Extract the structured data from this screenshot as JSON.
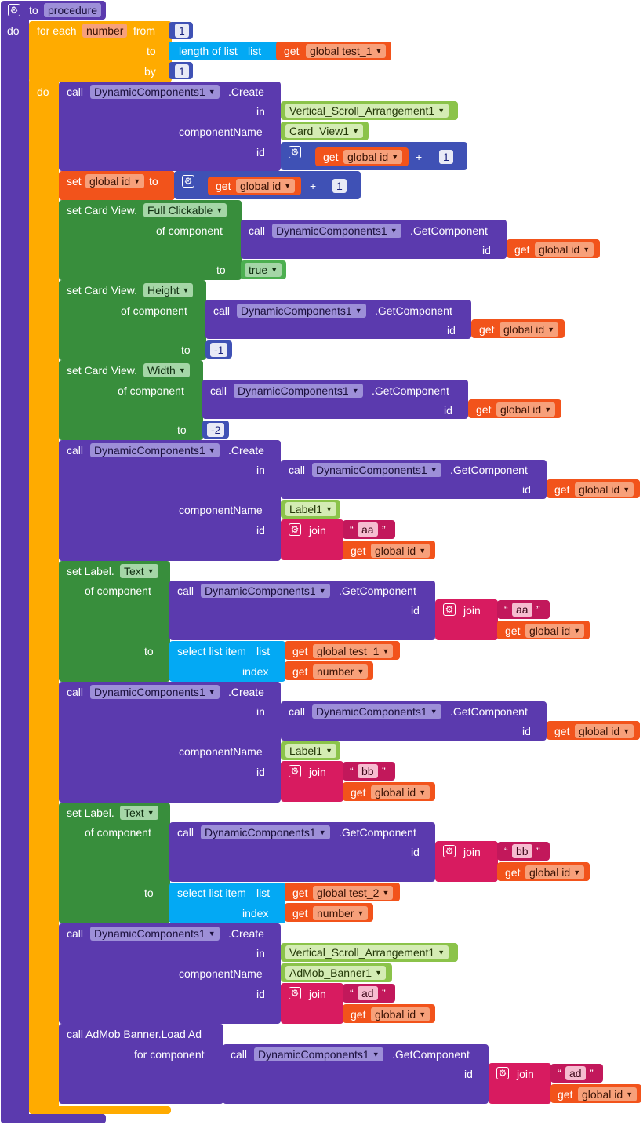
{
  "procedure": {
    "to_label": "to",
    "name": "procedure",
    "do_label": "do"
  },
  "for_each": {
    "label": "for each",
    "var": "number",
    "from_label": "from",
    "from_value": "1",
    "to_label": "to",
    "length_label": "length of list",
    "list_label": "list",
    "get_label": "get",
    "to_var": "global test_1",
    "by_label": "by",
    "by_value": "1",
    "do_label": "do"
  },
  "words": {
    "call": "call",
    "get": "get",
    "set": "set",
    "in": "in",
    "to": "to",
    "id": "id",
    "componentName": "componentName",
    "of_component": "of component",
    "for_component": "for component",
    "index": "index",
    "list": "list",
    "join": "join",
    "plus": "+",
    "create": ".Create",
    "get_component": ".GetComponent",
    "select_list_item": "select list item",
    "dyn": "DynamicComponents1",
    "global_id": "global id",
    "number": "number",
    "one": "1",
    "set_card_view": "set Card View.",
    "set_label": "set Label.",
    "admob_load": "call AdMob Banner.Load Ad",
    "q_open": "“",
    "q_close": "”"
  },
  "blocks": {
    "create1_in": "Vertical_Scroll_Arrangement1",
    "create1_name": "Card_View1",
    "setid_var": "global id",
    "cv_prop1": "Full Clickable",
    "cv_prop1_value": "true",
    "cv_prop2": "Height",
    "cv_prop2_value": "-1",
    "cv_prop3": "Width",
    "cv_prop3_value": "-2",
    "create2_name": "Label1",
    "text_aa": "aa",
    "label_prop": "Text",
    "list_test1": "global test_1",
    "create3_name": "Label1",
    "text_bb": "bb",
    "list_test2": "global test_2",
    "create4_in": "Vertical_Scroll_Arrangement1",
    "create4_name": "AdMob_Banner1",
    "text_ad": "ad"
  }
}
